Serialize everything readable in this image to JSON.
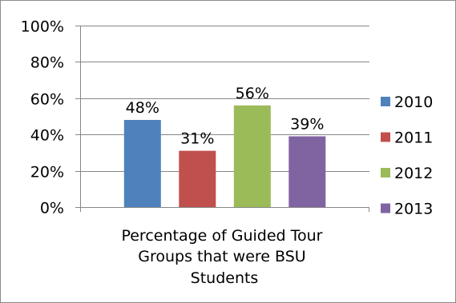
{
  "chart_data": {
    "type": "bar",
    "title": "",
    "xlabel": "",
    "ylabel": "",
    "categories": [
      "Percentage of Guided Tour Groups that were BSU Students"
    ],
    "category_label_lines": [
      "Percentage of Guided Tour",
      "Groups that were BSU",
      "Students"
    ],
    "series": [
      {
        "name": "2010",
        "values": [
          48
        ],
        "color": "#4f81bd",
        "label": "48%"
      },
      {
        "name": "2011",
        "values": [
          31
        ],
        "color": "#c0504d",
        "label": "31%"
      },
      {
        "name": "2012",
        "values": [
          56
        ],
        "color": "#9bbb59",
        "label": "56%"
      },
      {
        "name": "2013",
        "values": [
          39
        ],
        "color": "#8064a2",
        "label": "39%"
      }
    ],
    "ylim": [
      0,
      100
    ],
    "y_ticks": [
      0,
      20,
      40,
      60,
      80,
      100
    ],
    "y_tick_labels": [
      "0%",
      "20%",
      "40%",
      "60%",
      "80%",
      "100%"
    ],
    "grid": true,
    "legend_position": "right"
  }
}
